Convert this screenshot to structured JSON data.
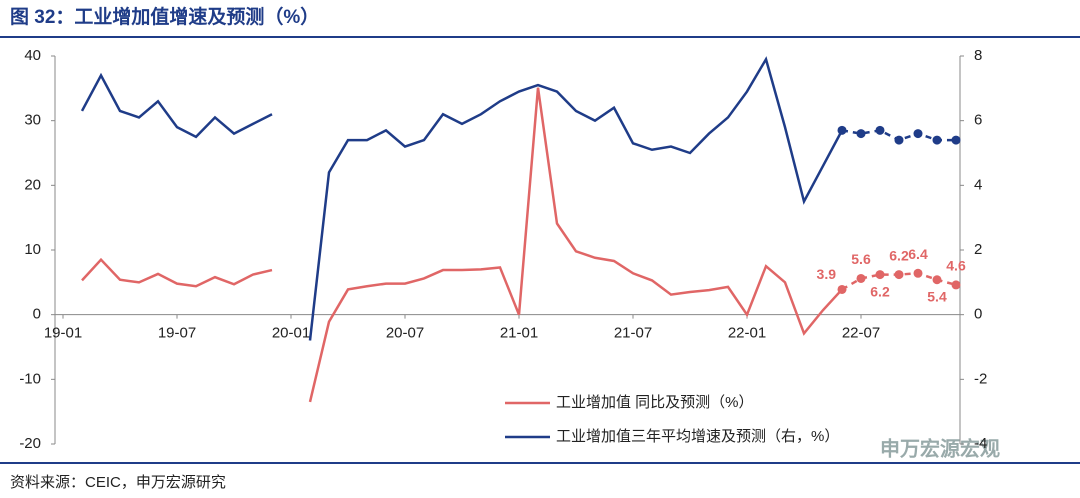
{
  "chart_data": {
    "type": "line",
    "title": "图 32：工业增加值增速及预测（%）",
    "source": "资料来源：CEIC，申万宏源研究",
    "watermark": "申万宏源宏观",
    "categories": [
      "19-01",
      null,
      null,
      null,
      null,
      null,
      "19-07",
      null,
      null,
      null,
      null,
      null,
      "20-01",
      null,
      null,
      null,
      null,
      null,
      "20-07",
      null,
      null,
      null,
      null,
      null,
      "21-01",
      null,
      null,
      null,
      null,
      null,
      "21-07",
      null,
      null,
      null,
      null,
      null,
      "22-01",
      null,
      null,
      null,
      null,
      null,
      "22-07",
      null,
      null,
      null,
      null,
      null
    ],
    "ylim": [
      -20,
      40
    ],
    "yticks": [
      -20,
      -10,
      0,
      10,
      20,
      30,
      40
    ],
    "y2lim": [
      -4,
      8
    ],
    "y2ticks": [
      -4,
      -2,
      0,
      2,
      4,
      6,
      8
    ],
    "series": [
      {
        "name": "工业增加值 同比及预测（%）",
        "color": "#e06666",
        "axis": "y",
        "values": [
          null,
          5.3,
          8.5,
          5.4,
          5.0,
          6.3,
          4.8,
          4.4,
          5.8,
          4.7,
          6.2,
          6.9,
          null,
          -13.5,
          -1.1,
          3.9,
          4.4,
          4.8,
          4.8,
          5.6,
          6.9,
          6.9,
          7.0,
          7.3,
          0,
          35.1,
          14.1,
          9.8,
          8.8,
          8.3,
          6.4,
          5.3,
          3.1,
          3.5,
          3.8,
          4.3,
          0,
          7.5,
          5.0,
          -2.9,
          0.7,
          3.9,
          null,
          null,
          null,
          null,
          null,
          null
        ],
        "forecast": [
          null,
          null,
          null,
          null,
          null,
          null,
          null,
          null,
          null,
          null,
          null,
          null,
          null,
          null,
          null,
          null,
          null,
          null,
          null,
          null,
          null,
          null,
          null,
          null,
          null,
          null,
          null,
          null,
          null,
          null,
          null,
          null,
          null,
          null,
          null,
          null,
          null,
          null,
          null,
          null,
          null,
          null,
          5.6,
          6.2,
          6.2,
          6.4,
          5.4,
          4.6
        ]
      },
      {
        "name": "工业增加值三年平均增速及预测（右，%）",
        "color": "#1f3c88",
        "axis": "y2",
        "values": [
          null,
          6.3,
          7.4,
          6.3,
          6.1,
          6.6,
          5.8,
          5.5,
          6.1,
          5.6,
          5.9,
          6.2,
          null,
          -0.8,
          4.4,
          5.4,
          5.4,
          5.7,
          5.2,
          5.4,
          6.2,
          5.9,
          6.2,
          6.6,
          6.9,
          7.1,
          6.9,
          6.3,
          6.0,
          6.4,
          5.3,
          5.1,
          5.2,
          5.0,
          5.6,
          6.1,
          6.9,
          7.9,
          5.8,
          3.5,
          4.6,
          5.7,
          null,
          null,
          null,
          null,
          null,
          null
        ],
        "forecast": [
          null,
          null,
          null,
          null,
          null,
          null,
          null,
          null,
          null,
          null,
          null,
          null,
          null,
          null,
          null,
          null,
          null,
          null,
          null,
          null,
          null,
          null,
          null,
          null,
          null,
          null,
          null,
          null,
          null,
          null,
          null,
          null,
          null,
          null,
          null,
          null,
          null,
          null,
          null,
          null,
          null,
          null,
          5.6,
          5.7,
          5.4,
          5.6,
          5.4,
          5.4
        ]
      }
    ]
  }
}
